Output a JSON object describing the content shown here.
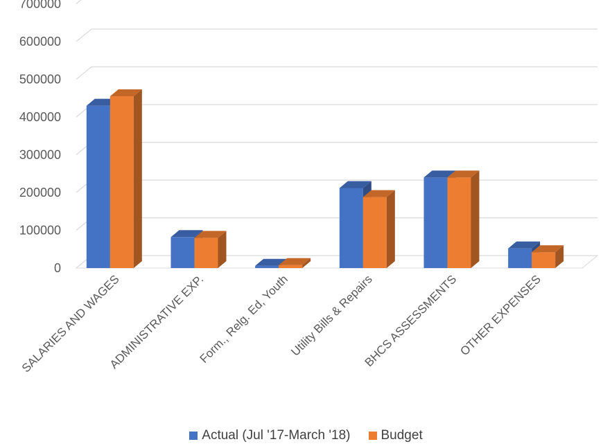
{
  "chart_data": {
    "type": "bar",
    "style": "3d-clustered-column",
    "categories": [
      "SALARIES AND WAGES",
      "ADMINISTRATIVE EXP.",
      "Form., Relg. Ed, Youth",
      "Utility Bills & Repairs",
      "BHCS ASSESSMENTS",
      "OTHER EXPENSES"
    ],
    "series": [
      {
        "name": "Actual (Jul '17-March '18)",
        "color": "#4472C4",
        "values": [
          430000,
          82000,
          6000,
          212000,
          240000,
          52000
        ]
      },
      {
        "name": "Budget",
        "color": "#ED7D31",
        "values": [
          455000,
          80000,
          8000,
          188000,
          240000,
          42000
        ]
      }
    ],
    "yticks": [
      "0",
      "100000",
      "200000",
      "300000",
      "400000",
      "500000",
      "600000",
      "700000"
    ],
    "ylim": [
      0,
      700000
    ],
    "grid": true,
    "legend_position": "bottom"
  }
}
